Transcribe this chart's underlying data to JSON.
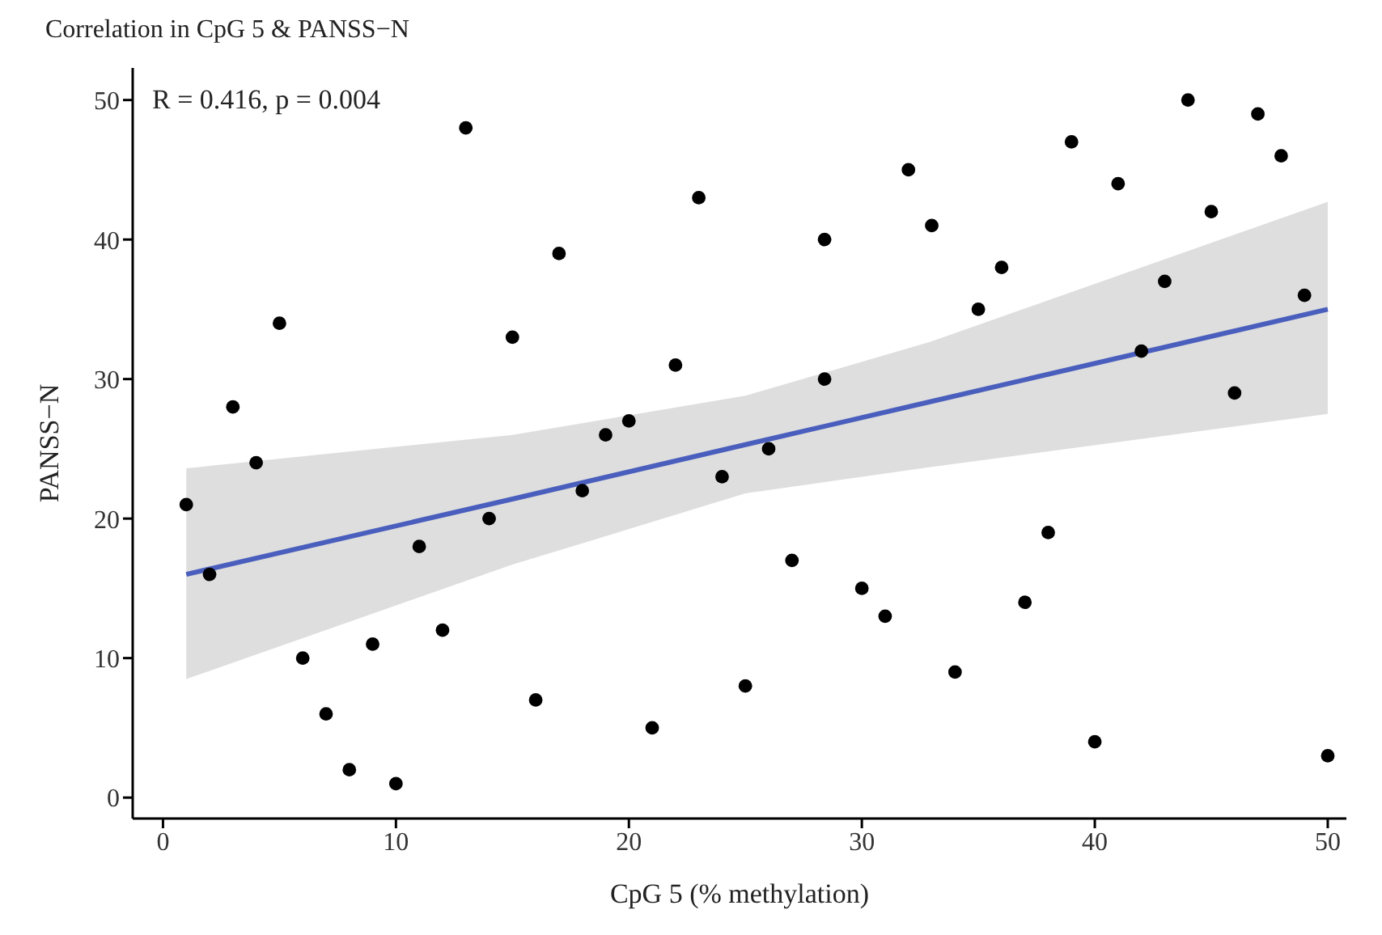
{
  "chart_data": {
    "type": "scatter",
    "title": "Correlation in CpG 5 & PANSS−N",
    "xlabel": "CpG 5 (% methylation)",
    "ylabel": "PANSS−N",
    "annotations": [
      "R = 0.416, p = 0.004"
    ],
    "xlim": [
      -1.3,
      50.8
    ],
    "ylim": [
      -1.5,
      52.3
    ],
    "xticks": [
      0,
      10,
      20,
      30,
      40,
      50
    ],
    "yticks": [
      0,
      10,
      20,
      30,
      40,
      50
    ],
    "grid": false,
    "marker": "circle",
    "series": [
      {
        "color": "#000000",
        "x": [
          1,
          2,
          3,
          4,
          5,
          6,
          7,
          8,
          9,
          10,
          11,
          12,
          13,
          14,
          15,
          16,
          17,
          18,
          19,
          20,
          21,
          22,
          23,
          24,
          25,
          26,
          27,
          28.4,
          28.4,
          30,
          31,
          32,
          33,
          34,
          35,
          36,
          37,
          38,
          39,
          40,
          41,
          42,
          43,
          44,
          45,
          46,
          47,
          48,
          49,
          50
        ],
        "values": [
          21,
          16,
          28,
          24,
          34,
          10,
          6,
          2,
          11,
          1,
          18,
          12,
          48,
          20,
          33,
          7,
          39,
          22,
          26,
          27,
          5,
          31,
          43,
          23,
          8,
          25,
          17,
          40,
          30,
          15,
          13,
          45,
          41,
          9,
          35,
          38,
          14,
          19,
          47,
          4,
          44,
          32,
          37,
          50,
          42,
          29,
          49,
          46,
          36,
          3
        ]
      },
      {
        "type": "line",
        "color": "#4a5fbd",
        "line_style": "solid",
        "marker": "none",
        "x": [
          1,
          15,
          25,
          33,
          50
        ],
        "values": [
          16,
          21.4,
          25.3,
          28.4,
          35
        ],
        "lower": [
          8.5,
          16.7,
          21.8,
          23.7,
          27.5
        ],
        "upper": [
          23.6,
          26,
          28.8,
          32.7,
          42.7
        ]
      }
    ]
  }
}
